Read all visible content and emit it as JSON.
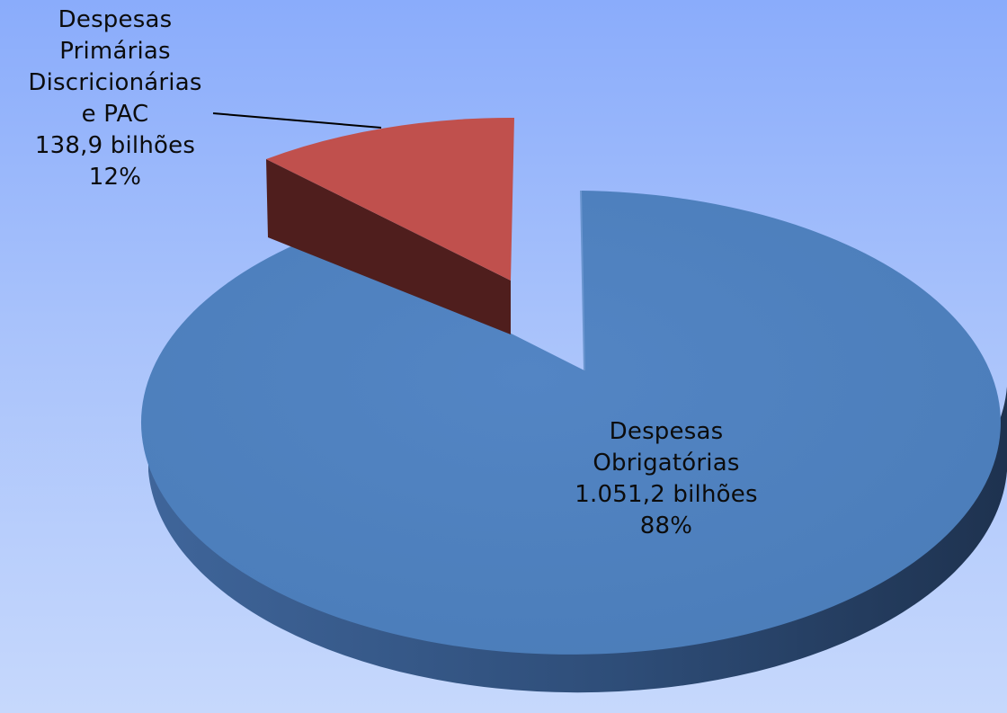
{
  "chart_data": {
    "type": "pie",
    "style": "3d-exploded",
    "slices": [
      {
        "label_lines": [
          "Despesas",
          "Obrigatórias"
        ],
        "amount_label": "1.051,2 bilhões",
        "percent_label": "88%",
        "value": 1051.2,
        "percent": 88,
        "color": "#4f81bd",
        "exploded": false
      },
      {
        "label_lines": [
          "Despesas",
          "Primárias",
          "Discricionárias",
          "e PAC"
        ],
        "amount_label": "138,9 bilhões",
        "percent_label": "12%",
        "value": 138.9,
        "percent": 12,
        "color": "#c0504d",
        "exploded": true
      }
    ],
    "legend": false
  }
}
